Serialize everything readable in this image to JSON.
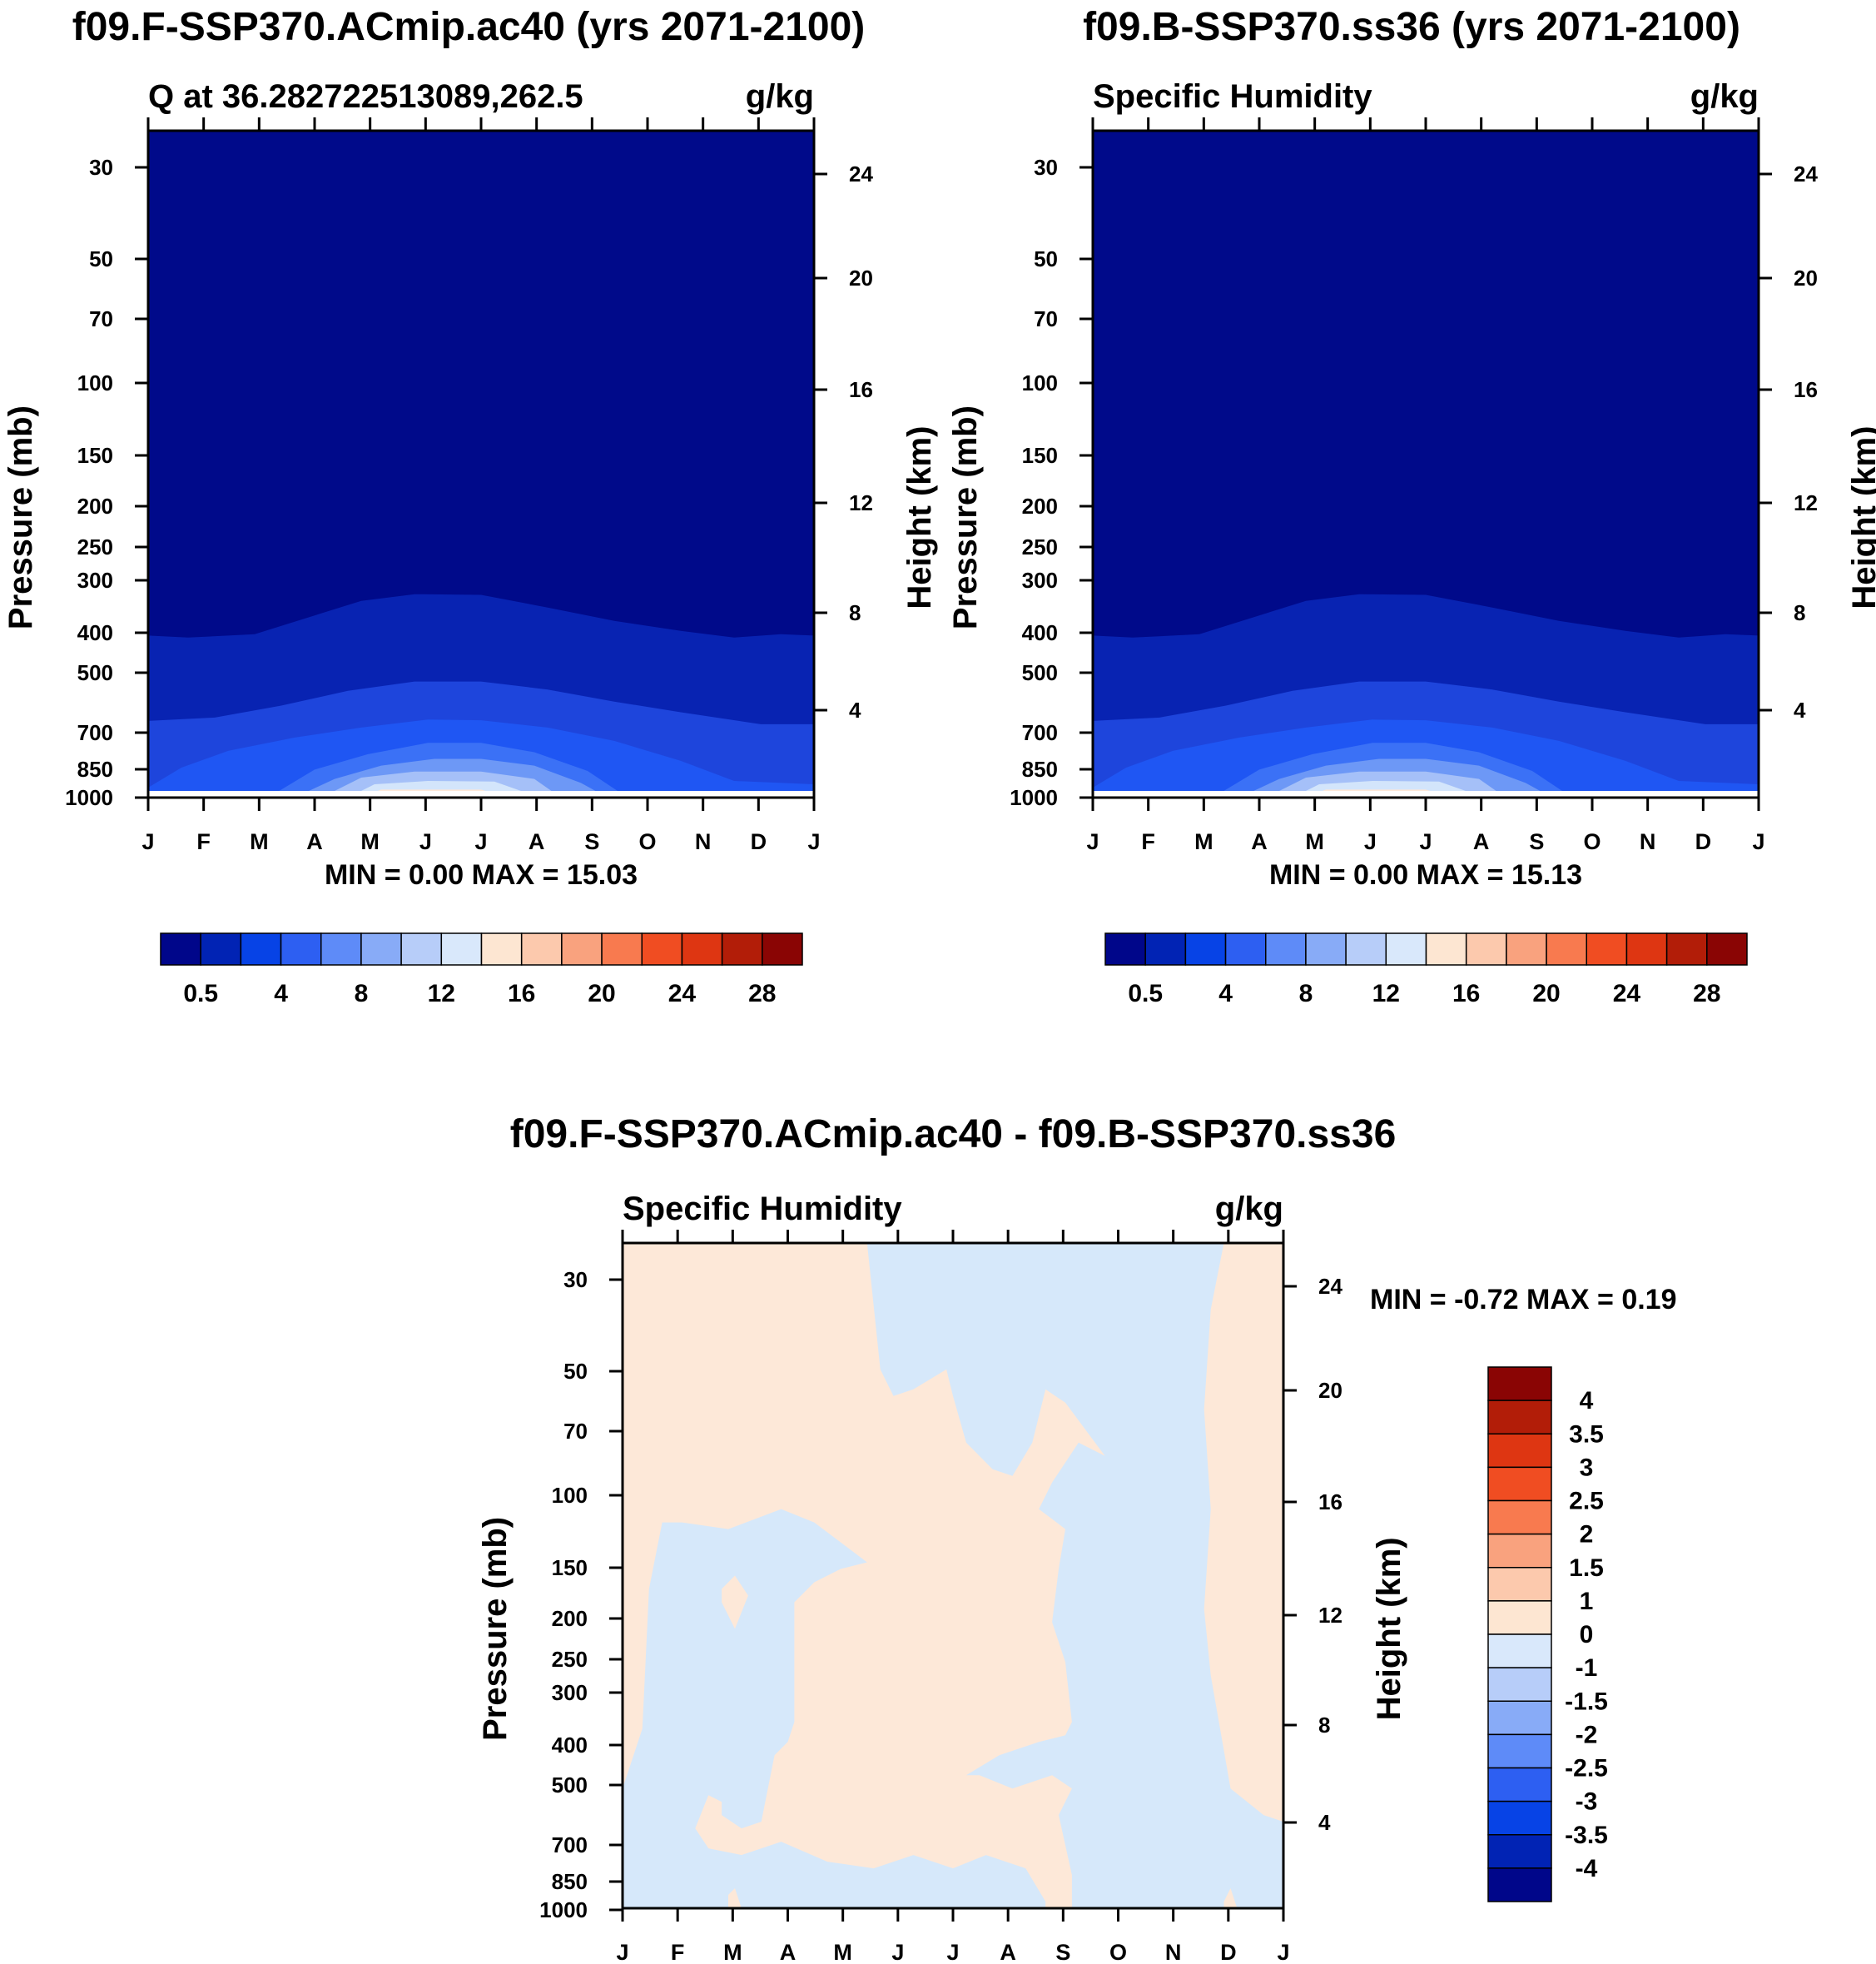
{
  "chart_data": [
    {
      "type": "contour",
      "title": "f09.F-SSP370.ACmip.ac40 (yrs 2071-2100)",
      "left_label": "Q at 36.282722513089,262.5",
      "units": "g/kg",
      "ylabel": "Pressure (mb)",
      "y2label": "Height (km)",
      "months": [
        "J",
        "F",
        "M",
        "A",
        "M",
        "J",
        "J",
        "A",
        "S",
        "O",
        "N",
        "D",
        "J"
      ],
      "pressure_ticks": [
        "30",
        "50",
        "70",
        "100",
        "150",
        "200",
        "250",
        "300",
        "400",
        "500",
        "700",
        "850",
        "1000"
      ],
      "height_ticks": [
        "24",
        "20",
        "16",
        "12",
        "8",
        "4"
      ],
      "stats": "MIN =   0.00 MAX =  15.03",
      "min": 0.0,
      "max": 15.03,
      "colorbar_labels": [
        "0.5",
        "4",
        "8",
        "12",
        "16",
        "20",
        "24",
        "28"
      ],
      "colorbar_colors": [
        "#00068a",
        "#0123b4",
        "#0743e6",
        "#2d5ff2",
        "#5e8bf8",
        "#88abf7",
        "#b7cdf9",
        "#d9e8fb",
        "#fde6d2",
        "#fcc9ad",
        "#f9a27e",
        "#f87a4f",
        "#f04d22",
        "#de3612",
        "#b21d08",
        "#8a0504"
      ],
      "fill_colors": [
        "#000a8a",
        "#0823b2",
        "#1e45dc",
        "#1f56f3",
        "#3b71f6",
        "#6d98f6",
        "#a5c0f8",
        "#d3e5fb",
        "#fde8d8",
        "#ffffff"
      ]
    },
    {
      "type": "contour",
      "title": "f09.B-SSP370.ss36 (yrs 2071-2100)",
      "left_label": "Specific Humidity",
      "units": "g/kg",
      "ylabel": "Pressure (mb)",
      "y2label": "Height (km)",
      "months": [
        "J",
        "F",
        "M",
        "A",
        "M",
        "J",
        "J",
        "A",
        "S",
        "O",
        "N",
        "D",
        "J"
      ],
      "pressure_ticks": [
        "30",
        "50",
        "70",
        "100",
        "150",
        "200",
        "250",
        "300",
        "400",
        "500",
        "700",
        "850",
        "1000"
      ],
      "height_ticks": [
        "24",
        "20",
        "16",
        "12",
        "8",
        "4"
      ],
      "stats": "MIN =   0.00 MAX =  15.13",
      "min": 0.0,
      "max": 15.13,
      "colorbar_labels": [
        "0.5",
        "4",
        "8",
        "12",
        "16",
        "20",
        "24",
        "28"
      ],
      "colorbar_colors": [
        "#00068a",
        "#0123b4",
        "#0743e6",
        "#2d5ff2",
        "#5e8bf8",
        "#88abf7",
        "#b7cdf9",
        "#d9e8fb",
        "#fde6d2",
        "#fcc9ad",
        "#f9a27e",
        "#f87a4f",
        "#f04d22",
        "#de3612",
        "#b21d08",
        "#8a0504"
      ],
      "fill_colors": [
        "#000a8a",
        "#0823b2",
        "#1e45dc",
        "#1f56f3",
        "#3b71f6",
        "#6d98f6",
        "#a5c0f8",
        "#d3e5fb",
        "#fde8d8",
        "#ffffff"
      ]
    },
    {
      "type": "contour",
      "title": "f09.F-SSP370.ACmip.ac40 - f09.B-SSP370.ss36",
      "left_label": "Specific Humidity",
      "units": "g/kg",
      "ylabel": "Pressure (mb)",
      "y2label": "Height (km)",
      "months": [
        "J",
        "F",
        "M",
        "A",
        "M",
        "J",
        "J",
        "A",
        "S",
        "O",
        "N",
        "D",
        "J"
      ],
      "pressure_ticks": [
        "30",
        "50",
        "70",
        "100",
        "150",
        "200",
        "250",
        "300",
        "400",
        "500",
        "700",
        "850",
        "1000"
      ],
      "height_ticks": [
        "24",
        "20",
        "16",
        "12",
        "8",
        "4"
      ],
      "stats": "MIN =  -0.72 MAX =   0.19",
      "min": -0.72,
      "max": 0.19,
      "colorbar_labels": [
        "4",
        "3.5",
        "3",
        "2.5",
        "2",
        "1.5",
        "1",
        "0",
        "-1",
        "-1.5",
        "-2",
        "-2.5",
        "-3",
        "-3.5",
        "-4"
      ],
      "colorbar_colors": [
        "#8a0504",
        "#b21d08",
        "#de3612",
        "#f04d22",
        "#f87a4f",
        "#f9a27e",
        "#fcc9ad",
        "#fde6d2",
        "#d9e8fb",
        "#b7cdf9",
        "#88abf7",
        "#5e8bf8",
        "#2d5ff2",
        "#0743e6",
        "#0123b4",
        "#00068a"
      ],
      "fill_colors": [
        "#fde8d8",
        "#d6e8fa"
      ]
    }
  ]
}
